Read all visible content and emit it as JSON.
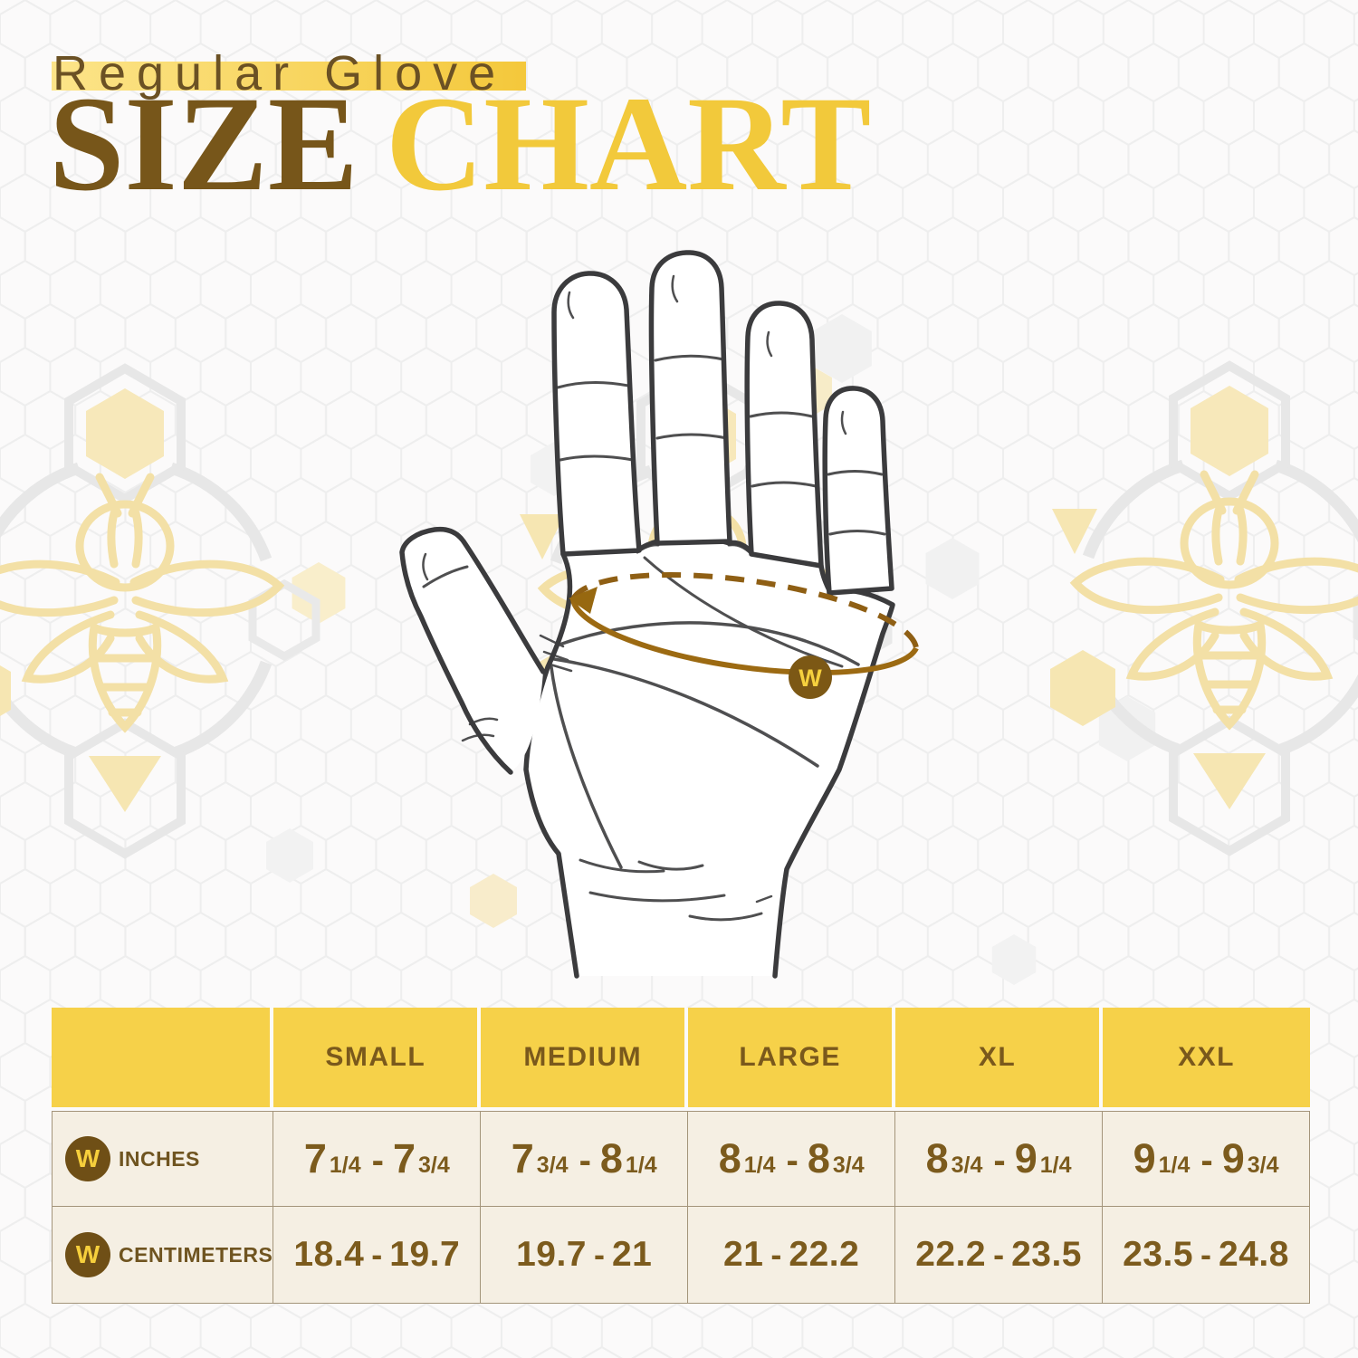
{
  "title": {
    "eyebrow": "Regular Glove",
    "size_word": "SIZE",
    "chart_word": "CHART"
  },
  "hand_diagram": {
    "badge_letter": "W",
    "description": "open palm with dashed measuring line around knuckles"
  },
  "table": {
    "columns": [
      "SMALL",
      "MEDIUM",
      "LARGE",
      "XL",
      "XXL"
    ],
    "rows": [
      {
        "label": "INCHES",
        "icon": "w-badge",
        "values": [
          [
            "7 1/4",
            "7 3/4"
          ],
          [
            "7 3/4",
            "8 1/4"
          ],
          [
            "8 1/4",
            "8 3/4"
          ],
          [
            "8 3/4",
            "9 1/4"
          ],
          [
            "9 1/4",
            "9 3/4"
          ]
        ]
      },
      {
        "label": "CENTIMETERS",
        "icon": "w-badge",
        "values": [
          [
            "18.4",
            "19.7"
          ],
          [
            "19.7",
            "21"
          ],
          [
            "21",
            "22.2"
          ],
          [
            "22.2",
            "23.5"
          ],
          [
            "23.5",
            "24.8"
          ]
        ]
      }
    ]
  },
  "chart_data": {
    "type": "table",
    "title": "Regular Glove Size Chart",
    "columns": [
      "SMALL",
      "MEDIUM",
      "LARGE",
      "XL",
      "XXL"
    ],
    "rows": [
      {
        "label": "INCHES",
        "values": [
          "7 1/4 - 7 3/4",
          "7 3/4 - 8 1/4",
          "8 1/4 - 8 3/4",
          "8 3/4 - 9 1/4",
          "9 1/4 - 9 3/4"
        ]
      },
      {
        "label": "CENTIMETERS",
        "values": [
          "18.4 - 19.7",
          "19.7 - 21",
          "21 - 22.2",
          "22.2 - 23.5",
          "23.5 - 24.8"
        ]
      }
    ]
  },
  "colors": {
    "header_yellow": "#f6d149",
    "body_cream": "#f5efe3",
    "brown_text": "#7a591c",
    "title_brown": "#77561a",
    "title_gold": "#f2c93b",
    "measure_line": "#9c6a12"
  }
}
